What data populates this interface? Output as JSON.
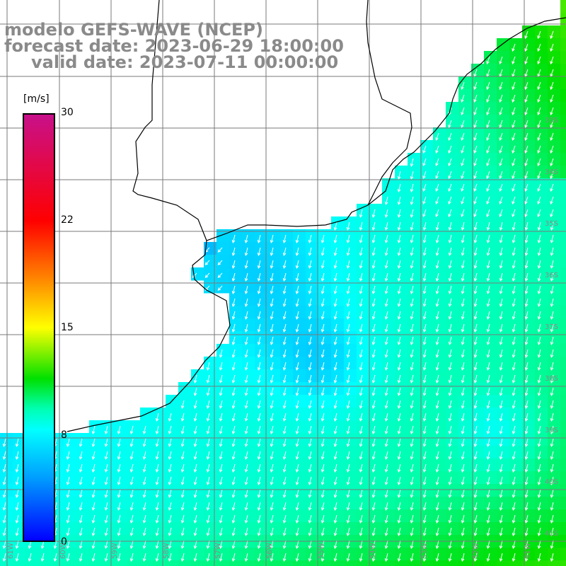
{
  "header": {
    "model_line": "modelo GEFS-WAVE (NCEP)",
    "forecast_line": "forecast date: 2023-06-29 18:00:00",
    "valid_line": "valid date: 2023-07-11 00:00:00"
  },
  "colorbar": {
    "units": "[m/s]",
    "ticks": [
      "30",
      "22",
      "15",
      "8",
      "0"
    ],
    "range": [
      0,
      30
    ]
  },
  "axes": {
    "lat_labels": [
      "33S",
      "34S",
      "35S",
      "36S",
      "37S",
      "38S",
      "39S",
      "40S",
      "41S"
    ],
    "lon_labels": [
      "61W",
      "60W",
      "59W",
      "58W",
      "57W",
      "56W",
      "55W",
      "54W",
      "53W",
      "52W",
      "51W"
    ]
  },
  "colors": {
    "land": "#ffffff",
    "grid": "#7a7a7a",
    "coast": "#000000",
    "arrow": "#ffffff",
    "title": "#8a8a8a"
  },
  "field": {
    "quantity": "wind speed",
    "arrow_direction": "wind from north-east toward south-west"
  }
}
